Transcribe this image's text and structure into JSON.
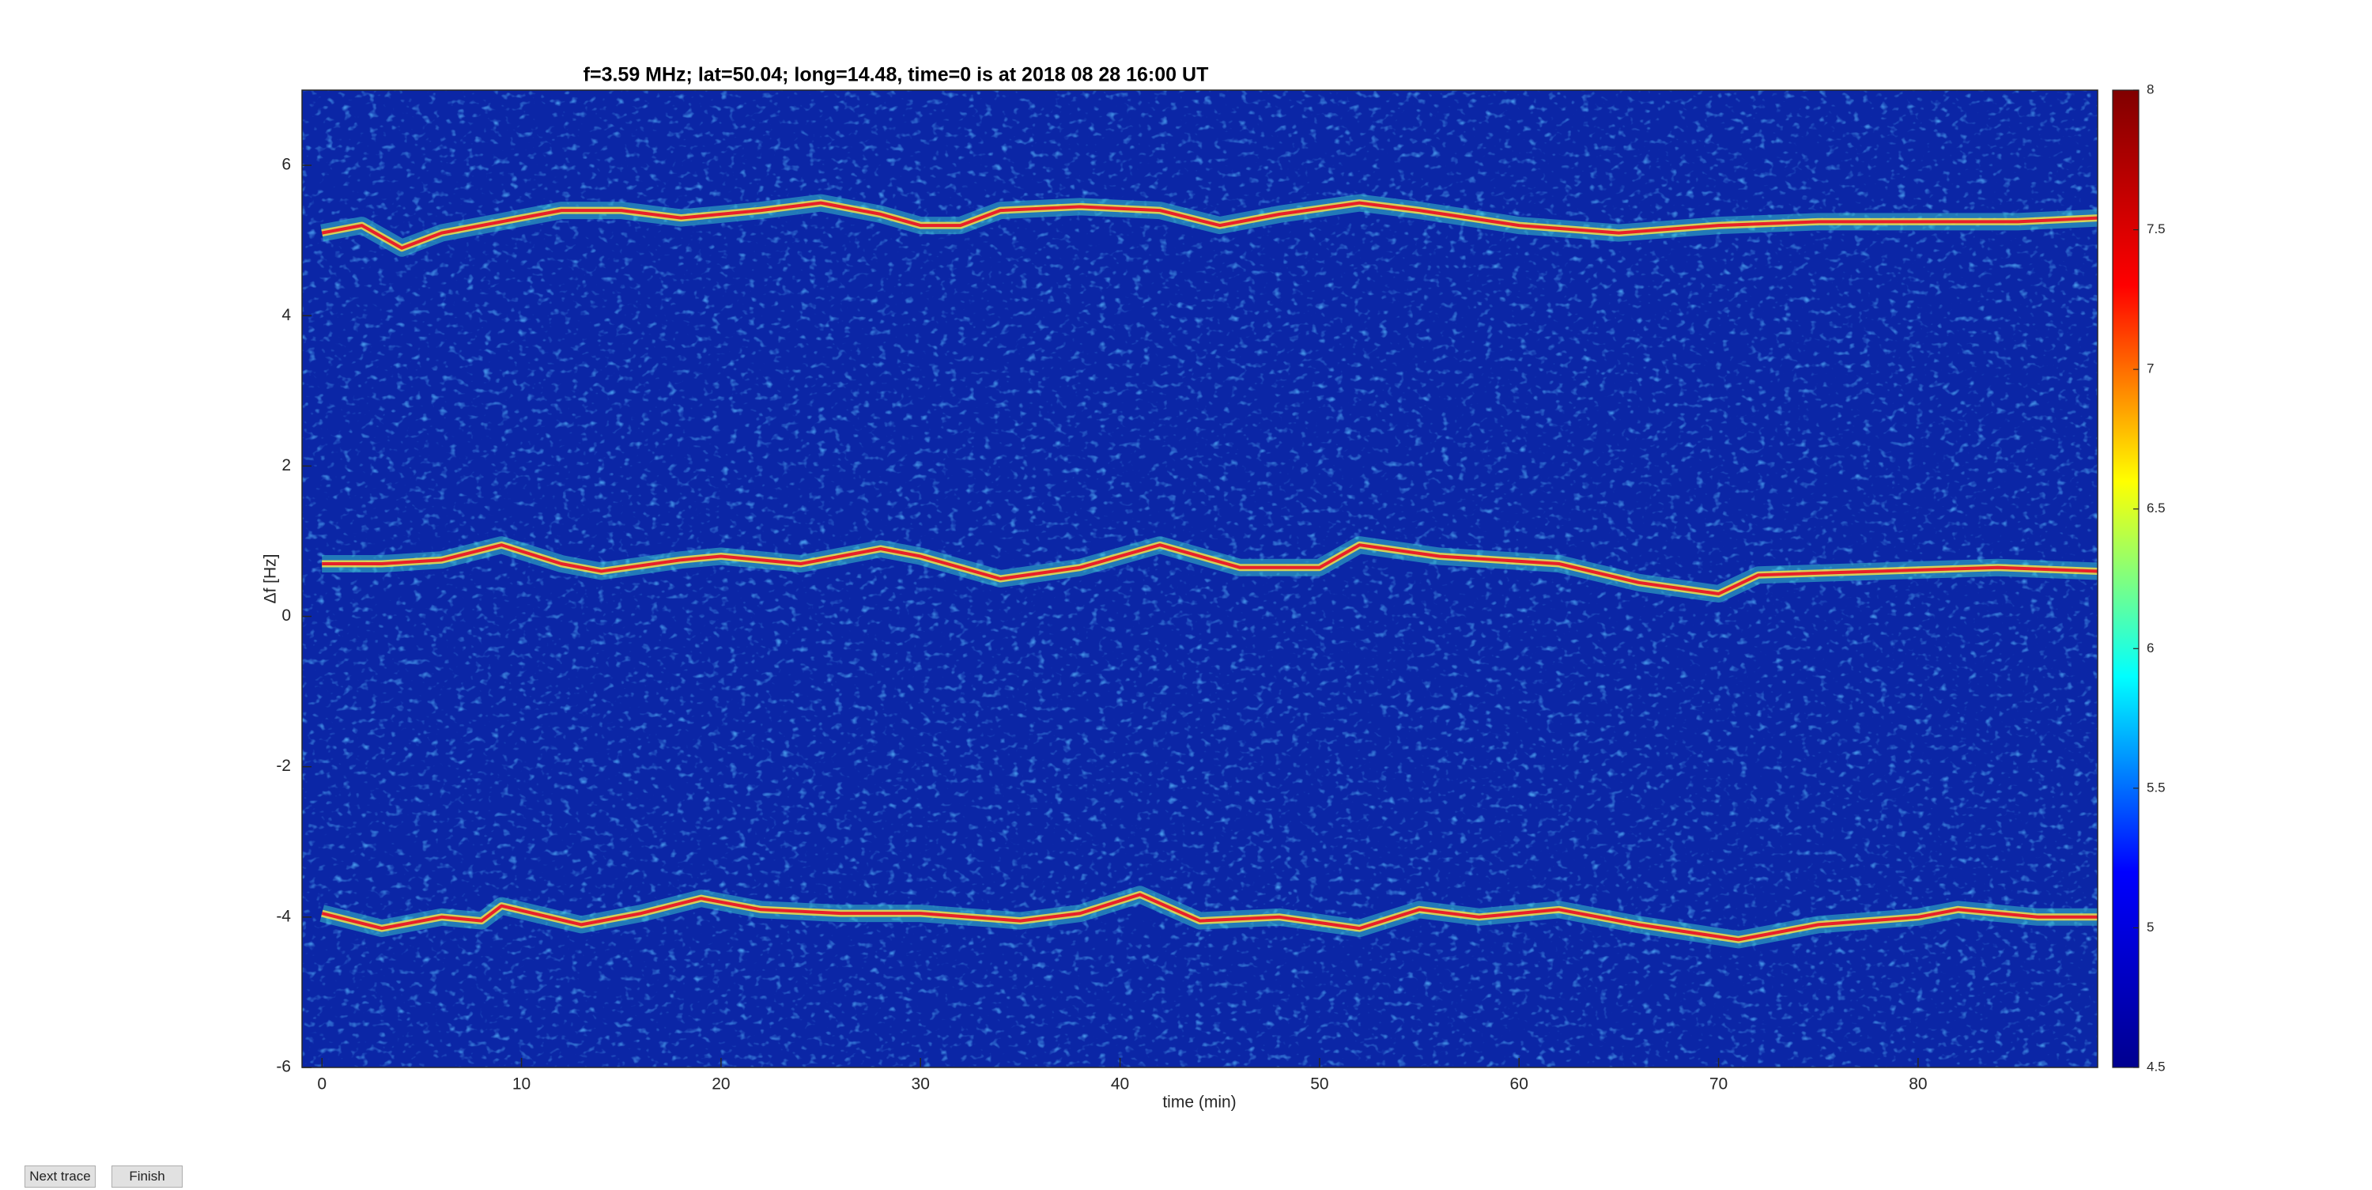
{
  "chart_data": {
    "type": "spectrogram",
    "title": "f=3.59 MHz;  lat=50.04; long=14.48, time=0 is at 2018 08 28 16:00 UT",
    "xlabel": "time (min)",
    "ylabel": "Δf [Hz]",
    "xlim": [
      -1,
      89
    ],
    "ylim": [
      -6,
      7
    ],
    "xticks": [
      0,
      10,
      20,
      30,
      40,
      50,
      60,
      70,
      80
    ],
    "yticks": [
      -6,
      -4,
      -2,
      0,
      2,
      4,
      6
    ],
    "background_color": "#0b26a6",
    "colorbar": {
      "lim": [
        4.5,
        8
      ],
      "ticks": [
        4.5,
        5,
        5.5,
        6,
        6.5,
        7,
        7.5,
        8
      ],
      "colormap": [
        "#00008f",
        "#0000ff",
        "#00ffff",
        "#ffff00",
        "#ff0000",
        "#800000"
      ]
    },
    "series": [
      {
        "color": "#e8202a",
        "x": [
          0,
          2,
          4,
          6,
          8,
          10,
          12,
          15,
          18,
          20,
          22,
          25,
          28,
          30,
          32,
          34,
          38,
          42,
          45,
          48,
          52,
          55,
          60,
          65,
          70,
          75,
          80,
          85,
          89
        ],
        "values": [
          5.1,
          5.2,
          4.9,
          5.1,
          5.2,
          5.3,
          5.4,
          5.4,
          5.3,
          5.35,
          5.4,
          5.5,
          5.35,
          5.2,
          5.2,
          5.4,
          5.45,
          5.4,
          5.2,
          5.35,
          5.5,
          5.4,
          5.2,
          5.1,
          5.2,
          5.25,
          5.25,
          5.25,
          5.3
        ]
      },
      {
        "color": "#e8202a",
        "x": [
          0,
          3,
          6,
          9,
          12,
          14,
          18,
          20,
          24,
          28,
          30,
          34,
          38,
          42,
          46,
          50,
          52,
          56,
          62,
          66,
          70,
          72,
          78,
          84,
          89
        ],
        "values": [
          0.7,
          0.7,
          0.75,
          0.95,
          0.7,
          0.6,
          0.75,
          0.8,
          0.7,
          0.9,
          0.8,
          0.5,
          0.65,
          0.95,
          0.65,
          0.65,
          0.95,
          0.8,
          0.7,
          0.45,
          0.3,
          0.55,
          0.6,
          0.65,
          0.6
        ]
      },
      {
        "color": "#e8202a",
        "x": [
          0,
          3,
          6,
          8,
          9,
          13,
          16,
          19,
          22,
          26,
          30,
          35,
          38,
          41,
          44,
          48,
          52,
          55,
          58,
          62,
          66,
          71,
          75,
          80,
          82,
          86,
          89
        ],
        "values": [
          -3.95,
          -4.15,
          -4.0,
          -4.05,
          -3.85,
          -4.1,
          -3.95,
          -3.75,
          -3.9,
          -3.95,
          -3.95,
          -4.05,
          -3.95,
          -3.7,
          -4.05,
          -4.0,
          -4.15,
          -3.9,
          -4.0,
          -3.9,
          -4.1,
          -4.3,
          -4.1,
          -4.0,
          -3.9,
          -4.0,
          -4.0
        ]
      }
    ]
  },
  "controls": {
    "buttons": [
      "Next trace",
      "Finish"
    ]
  }
}
